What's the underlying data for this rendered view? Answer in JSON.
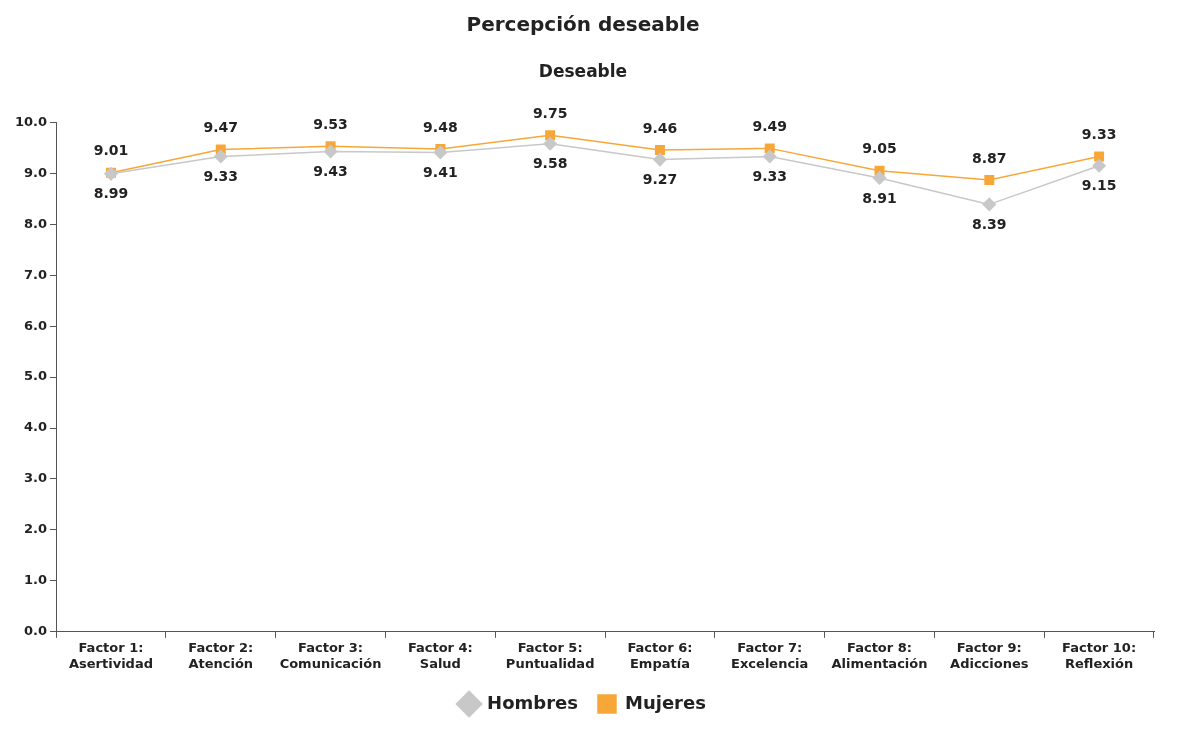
{
  "chart_data": {
    "type": "line",
    "title": "Percepción deseable",
    "subtitle": "Deseable",
    "categories": [
      "Factor 1: Asertividad",
      "Factor 2: Atención",
      "Factor 3: Comunicación",
      "Factor 4: Salud",
      "Factor 5: Puntualidad",
      "Factor 6: Empatía",
      "Factor 7: Excelencia",
      "Factor 8: Alimentación",
      "Factor 9: Adicciones",
      "Factor 10: Reflexión"
    ],
    "series": [
      {
        "name": "Hombres",
        "color": "#c8c8c8",
        "marker": "diamond",
        "values": [
          8.99,
          9.33,
          9.43,
          9.41,
          9.58,
          9.27,
          9.33,
          8.91,
          8.39,
          9.15
        ]
      },
      {
        "name": "Mujeres",
        "color": "#f7a738",
        "marker": "square",
        "values": [
          9.01,
          9.47,
          9.53,
          9.48,
          9.75,
          9.46,
          9.49,
          9.05,
          8.87,
          9.33
        ]
      }
    ],
    "ylim": [
      0,
      10
    ],
    "yticks": [
      {
        "value": 0,
        "label": "0.0"
      },
      {
        "value": 1,
        "label": "1.0"
      },
      {
        "value": 2,
        "label": "2.0"
      },
      {
        "value": 3,
        "label": "3.0"
      },
      {
        "value": 4,
        "label": "4.0"
      },
      {
        "value": 5,
        "label": "5.0"
      },
      {
        "value": 6,
        "label": "6.0"
      },
      {
        "value": 7,
        "label": "7.0"
      },
      {
        "value": 8,
        "label": "8.0"
      },
      {
        "value": 9,
        "label": "9.0"
      },
      {
        "value": 10,
        "label": "10.0"
      }
    ],
    "grid": false,
    "legend": "bottom",
    "data_labels": true,
    "line_style": "solid"
  }
}
